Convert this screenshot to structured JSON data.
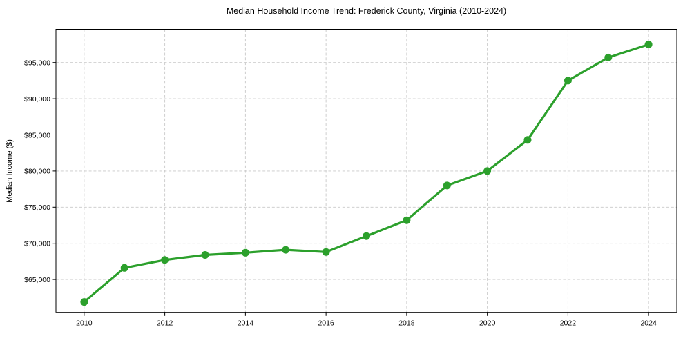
{
  "figure": {
    "title": "Median Household Income Trend: Frederick County, Virginia (2010-2024)",
    "ylabel": "Median Income ($)"
  },
  "colors": {
    "line": "#2ca02c",
    "marker": "#2ca02c",
    "grid": "#c9c9c9",
    "axis": "#000000",
    "text": "#000000",
    "background": "#ffffff"
  },
  "chart_data": {
    "type": "line",
    "title": "Median Household Income Trend: Frederick County, Virginia (2010-2024)",
    "xlabel": "",
    "ylabel": "Median Income ($)",
    "series": [
      {
        "name": "Median Household Income",
        "x": [
          2010,
          2011,
          2012,
          2013,
          2014,
          2015,
          2016,
          2017,
          2018,
          2019,
          2020,
          2021,
          2022,
          2023,
          2024
        ],
        "values": [
          61900,
          66600,
          67700,
          68400,
          68700,
          69100,
          68800,
          71000,
          73200,
          78000,
          80000,
          84300,
          92500,
          95700,
          97500
        ]
      }
    ],
    "xlim": [
      2009.3,
      2024.7
    ],
    "ylim": [
      60400,
      99600
    ],
    "xticks": [
      2010,
      2012,
      2014,
      2016,
      2018,
      2020,
      2022,
      2024
    ],
    "xtick_labels": [
      "2010",
      "2012",
      "2014",
      "2016",
      "2018",
      "2020",
      "2022",
      "2024"
    ],
    "yticks": [
      65000,
      70000,
      75000,
      80000,
      85000,
      90000,
      95000
    ],
    "ytick_labels": [
      "$65,000",
      "$70,000",
      "$75,000",
      "$80,000",
      "$85,000",
      "$90,000",
      "$95,000"
    ],
    "grid": true,
    "grid_style": "dashed",
    "legend": false,
    "marker": "circle",
    "marker_radius": 5.5,
    "line_width": 3.2
  }
}
